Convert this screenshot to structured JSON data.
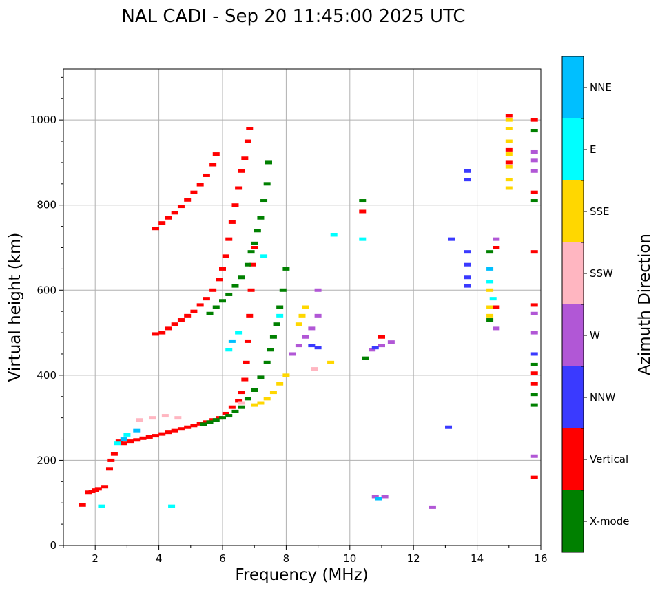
{
  "chart_data": {
    "type": "scatter",
    "title": "NAL CADI - Sep 20 11:45:00 2025 UTC",
    "xlabel": "Frequency (MHz)",
    "ylabel": "Virtual height (km)",
    "xlim": [
      1,
      16
    ],
    "ylim": [
      0,
      1120
    ],
    "x_ticks": [
      2,
      4,
      6,
      8,
      10,
      12,
      14,
      16
    ],
    "y_ticks": [
      0,
      200,
      400,
      600,
      800,
      1000
    ],
    "grid": true,
    "colorbar": {
      "label": "Azimuth Direction",
      "categories": [
        "X-mode",
        "Vertical",
        "NNW",
        "W",
        "SSW",
        "SSE",
        "E",
        "NNE"
      ],
      "colors": [
        "#008000",
        "#ff0000",
        "#3a3aff",
        "#b157d6",
        "#ffb6c1",
        "#ffd700",
        "#00ffff",
        "#00bfff"
      ]
    },
    "traces": [
      {
        "category": "Vertical",
        "points": [
          [
            1.6,
            95
          ],
          [
            1.8,
            125
          ],
          [
            1.9,
            127
          ],
          [
            2.0,
            130
          ],
          [
            2.1,
            133
          ],
          [
            2.3,
            138
          ],
          [
            2.45,
            180
          ],
          [
            2.5,
            200
          ],
          [
            2.6,
            215
          ],
          [
            2.75,
            245
          ],
          [
            2.9,
            240
          ],
          [
            3.1,
            245
          ],
          [
            3.3,
            248
          ],
          [
            3.5,
            252
          ],
          [
            3.7,
            255
          ],
          [
            3.9,
            258
          ],
          [
            4.1,
            262
          ],
          [
            4.3,
            266
          ],
          [
            4.5,
            270
          ],
          [
            4.7,
            274
          ],
          [
            4.9,
            278
          ],
          [
            5.1,
            282
          ],
          [
            5.3,
            286
          ],
          [
            5.5,
            290
          ],
          [
            5.7,
            295
          ],
          [
            5.9,
            300
          ],
          [
            6.1,
            310
          ],
          [
            6.3,
            325
          ],
          [
            6.5,
            340
          ],
          [
            6.6,
            360
          ],
          [
            6.7,
            390
          ],
          [
            6.75,
            430
          ],
          [
            6.8,
            480
          ],
          [
            6.85,
            540
          ],
          [
            6.9,
            600
          ],
          [
            6.95,
            660
          ],
          [
            7.0,
            700
          ]
        ]
      },
      {
        "category": "Vertical",
        "points": [
          [
            3.9,
            497
          ],
          [
            4.1,
            500
          ],
          [
            4.3,
            510
          ],
          [
            4.5,
            520
          ],
          [
            4.7,
            530
          ],
          [
            4.9,
            540
          ],
          [
            5.1,
            550
          ],
          [
            5.3,
            565
          ],
          [
            5.5,
            580
          ],
          [
            5.7,
            600
          ],
          [
            5.9,
            625
          ],
          [
            6.0,
            650
          ],
          [
            6.1,
            680
          ],
          [
            6.2,
            720
          ],
          [
            6.3,
            760
          ],
          [
            6.4,
            800
          ],
          [
            6.5,
            840
          ],
          [
            6.6,
            880
          ],
          [
            6.7,
            910
          ],
          [
            6.8,
            950
          ],
          [
            6.85,
            980
          ]
        ]
      },
      {
        "category": "Vertical",
        "points": [
          [
            3.9,
            745
          ],
          [
            4.1,
            758
          ],
          [
            4.3,
            770
          ],
          [
            4.5,
            782
          ],
          [
            4.7,
            797
          ],
          [
            4.9,
            812
          ],
          [
            5.1,
            830
          ],
          [
            5.3,
            848
          ],
          [
            5.5,
            870
          ],
          [
            5.7,
            895
          ],
          [
            5.8,
            920
          ]
        ]
      },
      {
        "category": "X-mode",
        "points": [
          [
            5.4,
            285
          ],
          [
            5.6,
            290
          ],
          [
            5.8,
            295
          ],
          [
            6.0,
            300
          ],
          [
            6.2,
            305
          ],
          [
            6.4,
            315
          ],
          [
            6.6,
            325
          ],
          [
            6.8,
            345
          ],
          [
            7.0,
            365
          ],
          [
            7.2,
            395
          ],
          [
            7.4,
            430
          ],
          [
            7.5,
            460
          ],
          [
            7.6,
            490
          ],
          [
            7.7,
            520
          ],
          [
            7.8,
            560
          ],
          [
            7.9,
            600
          ],
          [
            8.0,
            650
          ]
        ]
      },
      {
        "category": "X-mode",
        "points": [
          [
            5.6,
            545
          ],
          [
            5.8,
            560
          ],
          [
            6.0,
            575
          ],
          [
            6.2,
            590
          ],
          [
            6.4,
            610
          ],
          [
            6.6,
            630
          ],
          [
            6.8,
            660
          ],
          [
            6.9,
            690
          ],
          [
            7.0,
            710
          ],
          [
            7.1,
            740
          ],
          [
            7.2,
            770
          ],
          [
            7.3,
            810
          ],
          [
            7.4,
            850
          ],
          [
            7.45,
            900
          ]
        ]
      },
      {
        "category": "SSE",
        "points": [
          [
            7.0,
            330
          ],
          [
            7.2,
            335
          ],
          [
            7.4,
            345
          ],
          [
            7.6,
            360
          ],
          [
            7.8,
            380
          ],
          [
            8.0,
            400
          ],
          [
            8.4,
            520
          ],
          [
            8.5,
            540
          ],
          [
            8.6,
            560
          ],
          [
            9.4,
            430
          ]
        ]
      },
      {
        "category": "W",
        "points": [
          [
            8.2,
            450
          ],
          [
            8.4,
            470
          ],
          [
            8.6,
            490
          ],
          [
            8.8,
            510
          ],
          [
            9.0,
            540
          ],
          [
            9.0,
            600
          ],
          [
            10.7,
            460
          ],
          [
            11.0,
            470
          ],
          [
            11.3,
            478
          ],
          [
            10.8,
            115
          ],
          [
            11.1,
            115
          ]
        ]
      },
      {
        "category": "NNW",
        "points": [
          [
            8.8,
            470
          ],
          [
            9.0,
            465
          ],
          [
            10.8,
            465
          ],
          [
            13.7,
            690
          ],
          [
            13.7,
            660
          ],
          [
            13.7,
            630
          ],
          [
            13.7,
            610
          ],
          [
            13.7,
            880
          ],
          [
            13.7,
            860
          ],
          [
            13.2,
            720
          ],
          [
            13.1,
            278
          ]
        ]
      },
      {
        "category": "SSW",
        "points": [
          [
            3.4,
            295
          ],
          [
            3.8,
            300
          ],
          [
            4.2,
            305
          ],
          [
            4.6,
            300
          ],
          [
            8.9,
            415
          ],
          [
            6.6,
            335
          ]
        ]
      },
      {
        "category": "E",
        "points": [
          [
            2.2,
            92
          ],
          [
            2.7,
            240
          ],
          [
            3.0,
            260
          ],
          [
            4.4,
            92
          ],
          [
            6.2,
            460
          ],
          [
            6.5,
            500
          ],
          [
            7.3,
            680
          ],
          [
            7.8,
            540
          ],
          [
            9.5,
            730
          ],
          [
            10.4,
            720
          ],
          [
            14.4,
            620
          ],
          [
            14.5,
            580
          ]
        ]
      },
      {
        "category": "NNE",
        "points": [
          [
            2.9,
            250
          ],
          [
            3.3,
            270
          ],
          [
            6.3,
            480
          ],
          [
            10.9,
            110
          ],
          [
            14.4,
            650
          ]
        ]
      },
      {
        "category": "SSE",
        "points": [
          [
            15.0,
            1000
          ],
          [
            15.0,
            980
          ],
          [
            15.0,
            950
          ],
          [
            15.0,
            920
          ],
          [
            15.0,
            890
          ],
          [
            15.0,
            860
          ],
          [
            15.0,
            840
          ],
          [
            14.4,
            540
          ],
          [
            14.4,
            560
          ],
          [
            14.4,
            600
          ]
        ]
      },
      {
        "category": "Vertical",
        "points": [
          [
            15.0,
            1010
          ],
          [
            15.0,
            930
          ],
          [
            15.0,
            900
          ],
          [
            15.8,
            1000
          ],
          [
            15.8,
            830
          ],
          [
            15.8,
            690
          ],
          [
            15.8,
            565
          ],
          [
            15.8,
            405
          ],
          [
            15.8,
            380
          ],
          [
            15.8,
            160
          ],
          [
            14.6,
            700
          ],
          [
            14.6,
            560
          ],
          [
            11.0,
            490
          ],
          [
            10.4,
            785
          ]
        ]
      },
      {
        "category": "X-mode",
        "points": [
          [
            15.8,
            975
          ],
          [
            15.8,
            810
          ],
          [
            15.8,
            425
          ],
          [
            15.8,
            355
          ],
          [
            15.8,
            330
          ],
          [
            14.4,
            690
          ],
          [
            14.4,
            530
          ],
          [
            10.4,
            810
          ],
          [
            10.5,
            440
          ]
        ]
      },
      {
        "category": "W",
        "points": [
          [
            15.8,
            925
          ],
          [
            15.8,
            905
          ],
          [
            15.8,
            880
          ],
          [
            15.8,
            545
          ],
          [
            15.8,
            500
          ],
          [
            15.8,
            210
          ],
          [
            14.6,
            720
          ],
          [
            14.6,
            510
          ],
          [
            12.6,
            90
          ]
        ]
      },
      {
        "category": "NNW",
        "points": [
          [
            15.8,
            450
          ]
        ]
      }
    ]
  }
}
